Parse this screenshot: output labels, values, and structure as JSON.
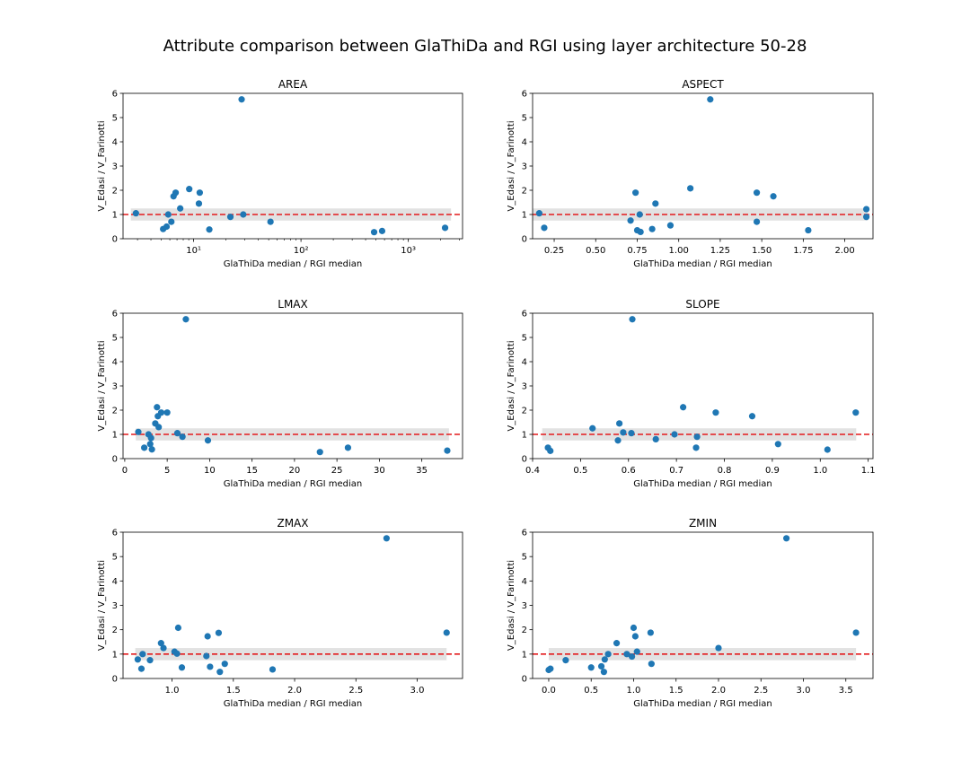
{
  "figure": {
    "suptitle": "Attribute comparison between GlaThiDa and RGI using layer architecture 50-28"
  },
  "style": {
    "marker_color": "#1f77b4",
    "ref_line_color": "#e31a1c",
    "band_color": "#dddddd"
  },
  "chart_data": [
    {
      "type": "scatter",
      "title": "AREA",
      "xlabel": "GlaThiDa median / RGI median",
      "ylabel": "V_Edasi / V_Farinotti",
      "xscale": "log",
      "xlim": [
        2.2,
        3200
      ],
      "ylim": [
        0,
        6
      ],
      "xticks": [
        10,
        100,
        1000
      ],
      "xticklabels": [
        "10¹",
        "10²",
        "10³"
      ],
      "yticks": [
        0,
        1,
        2,
        3,
        4,
        5,
        6
      ],
      "reference_line": 1,
      "band": [
        0.75,
        1.25
      ],
      "band_x": [
        2.6,
        2500
      ],
      "x": [
        2.9,
        5.2,
        5.6,
        5.8,
        6.2,
        6.5,
        6.8,
        7.5,
        9.1,
        11.2,
        11.4,
        14,
        22,
        29,
        28,
        52,
        480,
        570,
        2200
      ],
      "y": [
        1.05,
        0.4,
        0.5,
        1.0,
        0.7,
        1.75,
        1.9,
        1.25,
        2.05,
        1.45,
        1.9,
        0.38,
        0.9,
        1.0,
        5.75,
        0.7,
        0.27,
        0.32,
        0.45
      ]
    },
    {
      "type": "scatter",
      "title": "ASPECT",
      "xlabel": "GlaThiDa median / RGI median",
      "ylabel": "V_Edasi / V_Farinotti",
      "xscale": "linear",
      "xlim": [
        0.12,
        2.17
      ],
      "ylim": [
        0,
        6
      ],
      "xticks": [
        0.25,
        0.5,
        0.75,
        1.0,
        1.25,
        1.5,
        1.75,
        2.0
      ],
      "xticklabels": [
        "0.25",
        "0.50",
        "0.75",
        "1.00",
        "1.25",
        "1.50",
        "1.75",
        "2.00"
      ],
      "yticks": [
        0,
        1,
        2,
        3,
        4,
        5,
        6
      ],
      "reference_line": 1,
      "band": [
        0.75,
        1.25
      ],
      "band_x": [
        0.12,
        2.14
      ],
      "x": [
        0.16,
        0.19,
        0.71,
        0.74,
        0.75,
        0.765,
        0.77,
        0.84,
        0.86,
        0.95,
        1.07,
        1.19,
        1.47,
        1.47,
        1.57,
        1.78,
        2.13,
        2.13
      ],
      "y": [
        1.05,
        0.45,
        0.75,
        1.9,
        0.35,
        1.0,
        0.28,
        0.4,
        1.45,
        0.55,
        2.08,
        5.75,
        0.7,
        1.9,
        1.75,
        0.35,
        1.22,
        0.9
      ]
    },
    {
      "type": "scatter",
      "title": "LMAX",
      "xlabel": "GlaThiDa median / RGI median",
      "ylabel": "V_Edasi / V_Farinotti",
      "xscale": "linear",
      "xlim": [
        -0.2,
        39.8
      ],
      "ylim": [
        0,
        6
      ],
      "xticks": [
        0,
        5,
        10,
        15,
        20,
        25,
        30,
        35
      ],
      "xticklabels": [
        "0",
        "5",
        "10",
        "15",
        "20",
        "25",
        "30",
        "35"
      ],
      "yticks": [
        0,
        1,
        2,
        3,
        4,
        5,
        6
      ],
      "reference_line": 1,
      "band": [
        0.75,
        1.25
      ],
      "band_x": [
        1.3,
        38.2
      ],
      "x": [
        1.6,
        2.3,
        2.8,
        3.0,
        3.1,
        3.2,
        3.6,
        3.8,
        3.9,
        4.0,
        4.3,
        5.0,
        6.2,
        6.8,
        7.2,
        9.8,
        23,
        26.3,
        38
      ],
      "y": [
        1.1,
        0.45,
        1.0,
        0.6,
        0.85,
        0.38,
        1.45,
        2.12,
        1.75,
        1.3,
        1.9,
        1.9,
        1.05,
        0.9,
        5.75,
        0.75,
        0.27,
        0.45,
        0.33
      ]
    },
    {
      "type": "scatter",
      "title": "SLOPE",
      "xlabel": "GlaThiDa median / RGI median",
      "ylabel": "V_Edasi / V_Farinotti",
      "xscale": "linear",
      "xlim": [
        0.4,
        1.11
      ],
      "ylim": [
        0,
        6
      ],
      "xticks": [
        0.4,
        0.5,
        0.6,
        0.7,
        0.8,
        0.9,
        1.0,
        1.1
      ],
      "xticklabels": [
        "0.4",
        "0.5",
        "0.6",
        "0.7",
        "0.8",
        "0.9",
        "1.0",
        "1.1"
      ],
      "yticks": [
        0,
        1,
        2,
        3,
        4,
        5,
        6
      ],
      "reference_line": 1,
      "band": [
        0.75,
        1.25
      ],
      "band_x": [
        0.42,
        1.075
      ],
      "x": [
        0.432,
        0.437,
        0.525,
        0.578,
        0.581,
        0.589,
        0.606,
        0.608,
        0.657,
        0.696,
        0.714,
        0.741,
        0.743,
        0.782,
        0.858,
        0.912,
        1.015,
        1.074
      ],
      "y": [
        0.45,
        0.32,
        1.25,
        0.75,
        1.45,
        1.08,
        1.05,
        5.75,
        0.8,
        1.0,
        2.12,
        0.45,
        0.9,
        1.9,
        1.75,
        0.6,
        0.37,
        1.9
      ]
    },
    {
      "type": "scatter",
      "title": "ZMAX",
      "xlabel": "GlaThiDa median / RGI median",
      "ylabel": "V_Edasi / V_Farinotti",
      "xscale": "linear",
      "xlim": [
        0.6,
        3.37
      ],
      "ylim": [
        0,
        6
      ],
      "xticks": [
        1.0,
        1.5,
        2.0,
        2.5,
        3.0
      ],
      "xticklabels": [
        "1.0",
        "1.5",
        "2.0",
        "2.5",
        "3.0"
      ],
      "yticks": [
        0,
        1,
        2,
        3,
        4,
        5,
        6
      ],
      "reference_line": 1,
      "band": [
        0.75,
        1.25
      ],
      "band_x": [
        0.7,
        3.24
      ],
      "x": [
        0.72,
        0.75,
        0.76,
        0.82,
        0.91,
        0.93,
        1.02,
        1.04,
        1.05,
        1.08,
        1.28,
        1.29,
        1.31,
        1.38,
        1.39,
        1.43,
        1.82,
        2.75,
        3.24
      ],
      "y": [
        0.78,
        0.4,
        1.0,
        0.75,
        1.45,
        1.25,
        1.1,
        1.02,
        2.08,
        0.45,
        0.92,
        1.73,
        0.48,
        1.87,
        0.27,
        0.6,
        0.37,
        5.75,
        1.88
      ]
    },
    {
      "type": "scatter",
      "title": "ZMIN",
      "xlabel": "GlaThiDa median / RGI median",
      "ylabel": "V_Edasi / V_Farinotti",
      "xscale": "linear",
      "xlim": [
        -0.19,
        3.82
      ],
      "ylim": [
        0,
        6
      ],
      "xticks": [
        0.0,
        0.5,
        1.0,
        1.5,
        2.0,
        2.5,
        3.0,
        3.5
      ],
      "xticklabels": [
        "0.0",
        "0.5",
        "1.0",
        "1.5",
        "2.0",
        "2.5",
        "3.0",
        "3.5"
      ],
      "yticks": [
        0,
        1,
        2,
        3,
        4,
        5,
        6
      ],
      "reference_line": 1,
      "band": [
        0.75,
        1.25
      ],
      "band_x": [
        0.0,
        3.62
      ],
      "x": [
        0.0,
        0.02,
        0.2,
        0.5,
        0.62,
        0.65,
        0.66,
        0.7,
        0.8,
        0.92,
        0.98,
        1.0,
        1.02,
        1.04,
        1.2,
        1.21,
        2.0,
        2.8,
        3.62
      ],
      "y": [
        0.35,
        0.4,
        0.75,
        0.45,
        0.5,
        0.27,
        0.78,
        1.0,
        1.45,
        1.0,
        0.9,
        2.08,
        1.73,
        1.1,
        1.88,
        0.6,
        1.25,
        5.75,
        1.88
      ]
    }
  ]
}
